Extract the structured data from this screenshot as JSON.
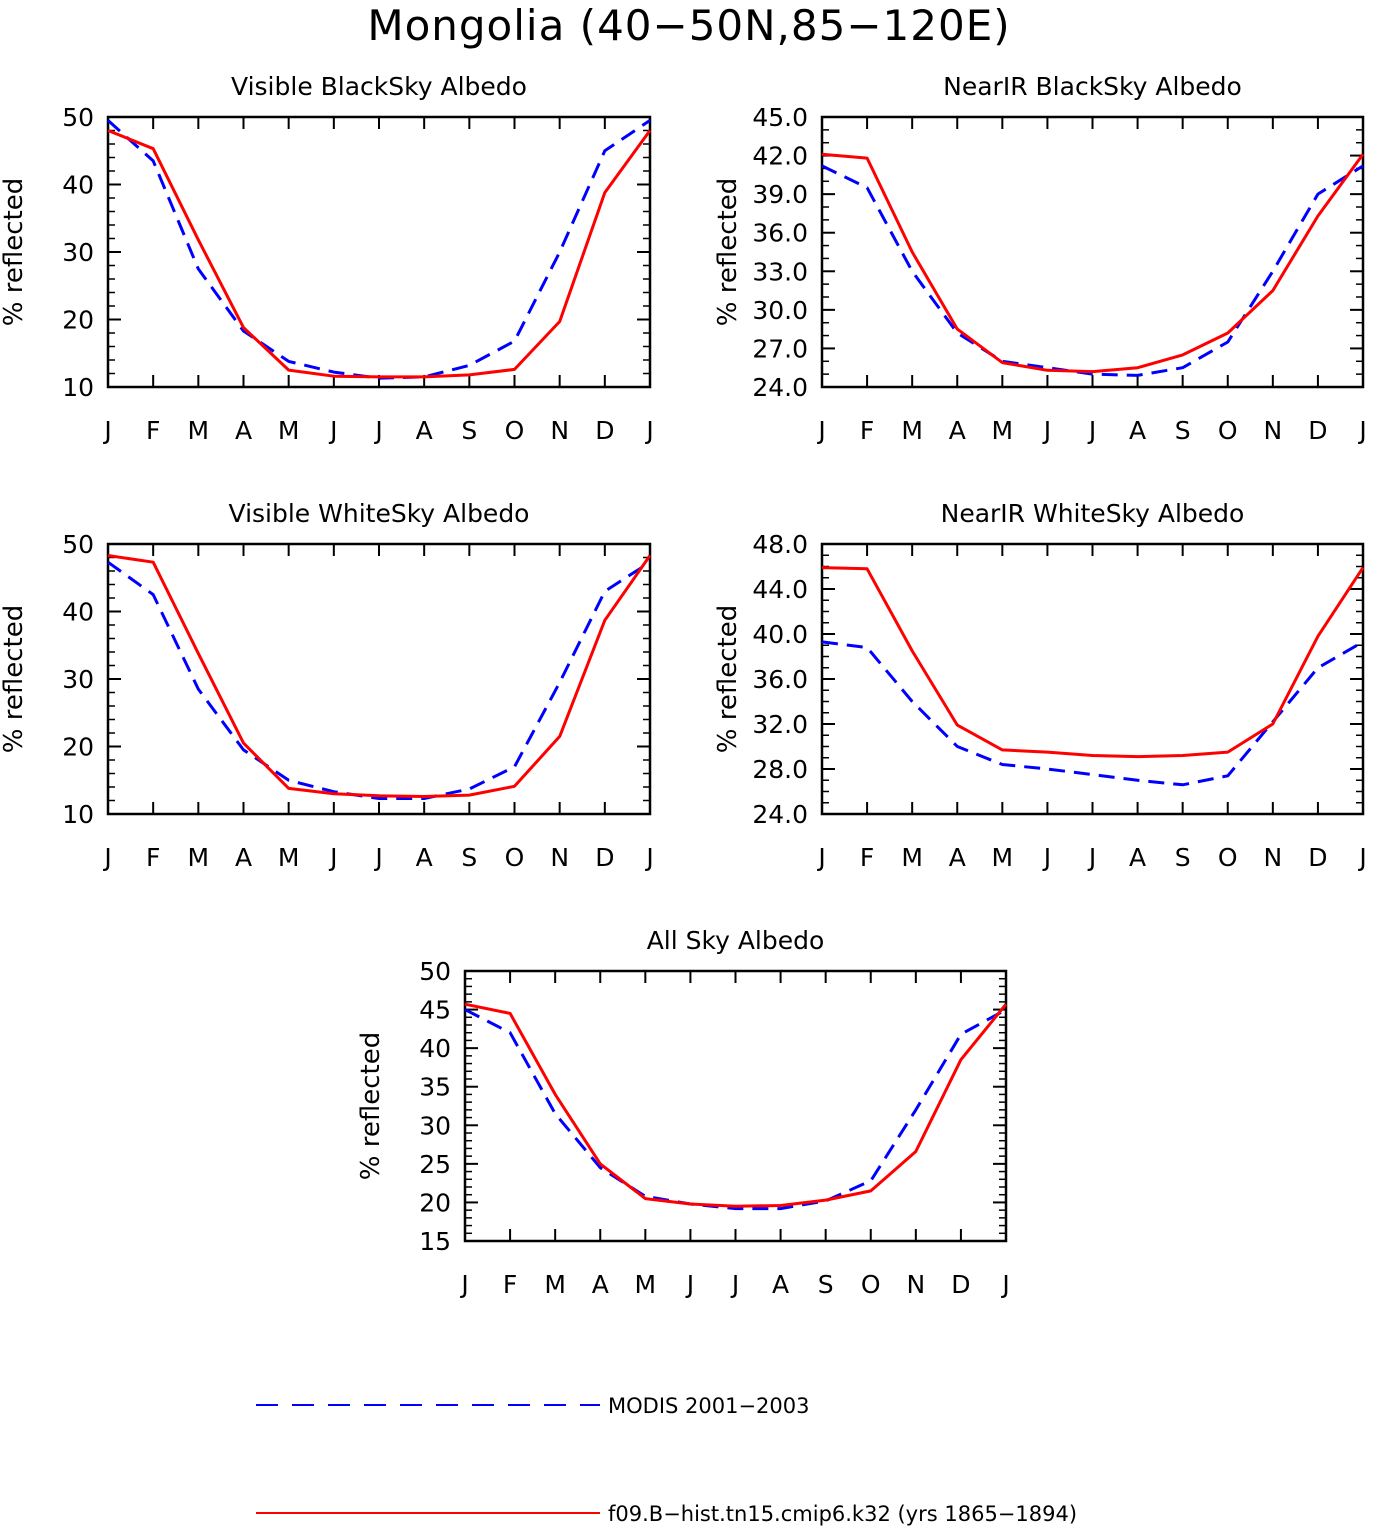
{
  "figure": {
    "title": "Mongolia (40−50N,85−120E)"
  },
  "colors": {
    "modis": "#0000ff",
    "model": "#ff0000",
    "axis": "#000000"
  },
  "legend": {
    "modis_label": "MODIS 2001−2003",
    "model_label": "f09.B−hist.tn15.cmip6.k32 (yrs 1865−1894)"
  },
  "chart_data": [
    {
      "type": "line",
      "title": "Visible BlackSky Albedo",
      "ylabel": "% reflected",
      "xlabel": "",
      "x": [
        "J",
        "F",
        "M",
        "A",
        "M",
        "J",
        "J",
        "A",
        "S",
        "O",
        "N",
        "D",
        "J"
      ],
      "ylim": [
        10,
        50
      ],
      "yticks": [
        "10",
        "20",
        "30",
        "40",
        "50"
      ],
      "yminor": 5,
      "grid": false,
      "series": [
        {
          "name": "MODIS 2001−2003",
          "style": "dashed",
          "values": [
            49.5,
            43.5,
            27.5,
            18.3,
            13.8,
            12.2,
            11.3,
            11.5,
            13.2,
            16.8,
            30.0,
            45.0,
            49.5
          ]
        },
        {
          "name": "f09.B−hist.tn15.cmip6.k32 (yrs 1865−1894)",
          "style": "solid",
          "values": [
            48.0,
            45.3,
            31.8,
            18.8,
            12.5,
            11.6,
            11.5,
            11.5,
            11.8,
            12.6,
            19.7,
            38.8,
            48.0
          ]
        }
      ]
    },
    {
      "type": "line",
      "title": "NearIR BlackSky Albedo",
      "ylabel": "% reflected",
      "xlabel": "",
      "x": [
        "J",
        "F",
        "M",
        "A",
        "M",
        "J",
        "J",
        "A",
        "S",
        "O",
        "N",
        "D",
        "J"
      ],
      "ylim": [
        24,
        45
      ],
      "yticks": [
        "24.0",
        "27.0",
        "30.0",
        "33.0",
        "36.0",
        "39.0",
        "42.0",
        "45.0"
      ],
      "yminor": 3,
      "grid": false,
      "series": [
        {
          "name": "MODIS 2001−2003",
          "style": "dashed",
          "values": [
            41.2,
            39.5,
            33.0,
            28.2,
            26.0,
            25.5,
            25.0,
            24.9,
            25.5,
            27.5,
            33.0,
            39.0,
            41.2
          ]
        },
        {
          "name": "f09.B−hist.tn15.cmip6.k32 (yrs 1865−1894)",
          "style": "solid",
          "values": [
            42.1,
            41.8,
            34.5,
            28.5,
            25.9,
            25.3,
            25.2,
            25.5,
            26.5,
            28.2,
            31.5,
            37.3,
            42.1
          ]
        }
      ]
    },
    {
      "type": "line",
      "title": "Visible WhiteSky Albedo",
      "ylabel": "% reflected",
      "xlabel": "",
      "x": [
        "J",
        "F",
        "M",
        "A",
        "M",
        "J",
        "J",
        "A",
        "S",
        "O",
        "N",
        "D",
        "J"
      ],
      "ylim": [
        10,
        50
      ],
      "yticks": [
        "10",
        "20",
        "30",
        "40",
        "50"
      ],
      "yminor": 5,
      "grid": false,
      "series": [
        {
          "name": "MODIS 2001−2003",
          "style": "dashed",
          "values": [
            47.3,
            42.5,
            28.5,
            19.5,
            15.0,
            13.3,
            12.3,
            12.3,
            13.7,
            17.0,
            29.5,
            43.0,
            47.3
          ]
        },
        {
          "name": "f09.B−hist.tn15.cmip6.k32 (yrs 1865−1894)",
          "style": "solid",
          "values": [
            48.3,
            47.3,
            33.8,
            20.5,
            13.8,
            13.0,
            12.7,
            12.6,
            12.8,
            14.1,
            21.5,
            38.7,
            48.3
          ]
        }
      ]
    },
    {
      "type": "line",
      "title": "NearIR WhiteSky Albedo",
      "ylabel": "% reflected",
      "xlabel": "",
      "x": [
        "J",
        "F",
        "M",
        "A",
        "M",
        "J",
        "J",
        "A",
        "S",
        "O",
        "N",
        "D",
        "J"
      ],
      "ylim": [
        24,
        48
      ],
      "yticks": [
        "24.0",
        "28.0",
        "32.0",
        "36.0",
        "40.0",
        "44.0",
        "48.0"
      ],
      "yminor": 4,
      "grid": false,
      "series": [
        {
          "name": "MODIS 2001−2003",
          "style": "dashed",
          "values": [
            39.3,
            38.8,
            34.0,
            30.0,
            28.4,
            28.0,
            27.5,
            27.0,
            26.6,
            27.4,
            32.2,
            37.0,
            39.3
          ]
        },
        {
          "name": "f09.B−hist.tn15.cmip6.k32 (yrs 1865−1894)",
          "style": "solid",
          "values": [
            45.9,
            45.8,
            38.5,
            31.9,
            29.7,
            29.5,
            29.2,
            29.1,
            29.2,
            29.5,
            32.0,
            39.8,
            45.9
          ]
        }
      ]
    },
    {
      "type": "line",
      "title": "All Sky Albedo",
      "ylabel": "% reflected",
      "xlabel": "",
      "x": [
        "J",
        "F",
        "M",
        "A",
        "M",
        "J",
        "J",
        "A",
        "S",
        "O",
        "N",
        "D",
        "J"
      ],
      "ylim": [
        15,
        50
      ],
      "yticks": [
        "15",
        "20",
        "25",
        "30",
        "35",
        "40",
        "45",
        "50"
      ],
      "yminor": 5,
      "grid": false,
      "series": [
        {
          "name": "MODIS 2001−2003",
          "style": "dashed",
          "values": [
            45.0,
            42.0,
            31.5,
            24.5,
            20.8,
            19.8,
            19.2,
            19.2,
            20.2,
            22.8,
            32.0,
            41.8,
            45.0
          ]
        },
        {
          "name": "f09.B−hist.tn15.cmip6.k32 (yrs 1865−1894)",
          "style": "solid",
          "values": [
            45.7,
            44.5,
            34.0,
            25.0,
            20.5,
            19.8,
            19.5,
            19.6,
            20.3,
            21.5,
            26.6,
            38.5,
            45.7
          ]
        }
      ]
    }
  ]
}
